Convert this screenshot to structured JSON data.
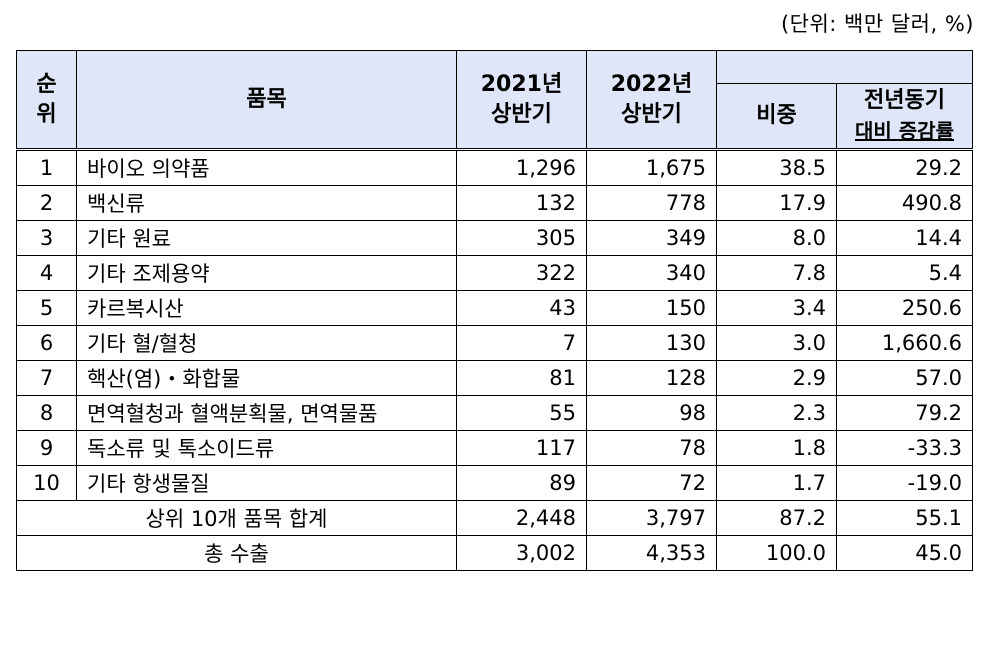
{
  "unit": "(단위: 백만 달러, %)",
  "headers": {
    "rank": "순\n위",
    "item": "품목",
    "y2021": "2021년\n상반기",
    "y2022": "2022년\n상반기",
    "share": "비중",
    "yoy_line1": "전년동기",
    "yoy_line2": "대비 증감률"
  },
  "rows": [
    {
      "rank": "1",
      "item": "바이오 의약품",
      "y2021": "1,296",
      "y2022": "1,675",
      "share": "38.5",
      "yoy": "29.2"
    },
    {
      "rank": "2",
      "item": "백신류",
      "y2021": "132",
      "y2022": "778",
      "share": "17.9",
      "yoy": "490.8"
    },
    {
      "rank": "3",
      "item": "기타 원료",
      "y2021": "305",
      "y2022": "349",
      "share": "8.0",
      "yoy": "14.4"
    },
    {
      "rank": "4",
      "item": "기타 조제용약",
      "y2021": "322",
      "y2022": "340",
      "share": "7.8",
      "yoy": "5.4"
    },
    {
      "rank": "5",
      "item": "카르복시산",
      "y2021": "43",
      "y2022": "150",
      "share": "3.4",
      "yoy": "250.6"
    },
    {
      "rank": "6",
      "item": "기타 혈/혈청",
      "y2021": "7",
      "y2022": "130",
      "share": "3.0",
      "yoy": "1,660.6"
    },
    {
      "rank": "7",
      "item": "핵산(염)・화합물",
      "y2021": "81",
      "y2022": "128",
      "share": "2.9",
      "yoy": "57.0"
    },
    {
      "rank": "8",
      "item": "면역혈청과 혈액분획물, 면역물품",
      "y2021": "55",
      "y2022": "98",
      "share": "2.3",
      "yoy": "79.2"
    },
    {
      "rank": "9",
      "item": "독소류 및 톡소이드류",
      "y2021": "117",
      "y2022": "78",
      "share": "1.8",
      "yoy": "-33.3"
    },
    {
      "rank": "10",
      "item": "기타 항생물질",
      "y2021": "89",
      "y2022": "72",
      "share": "1.7",
      "yoy": "-19.0"
    }
  ],
  "totals": [
    {
      "label": "상위 10개 품목 합계",
      "y2021": "2,448",
      "y2022": "3,797",
      "share": "87.2",
      "yoy": "55.1"
    },
    {
      "label": "총 수출",
      "y2021": "3,002",
      "y2022": "4,353",
      "share": "100.0",
      "yoy": "45.0"
    }
  ]
}
